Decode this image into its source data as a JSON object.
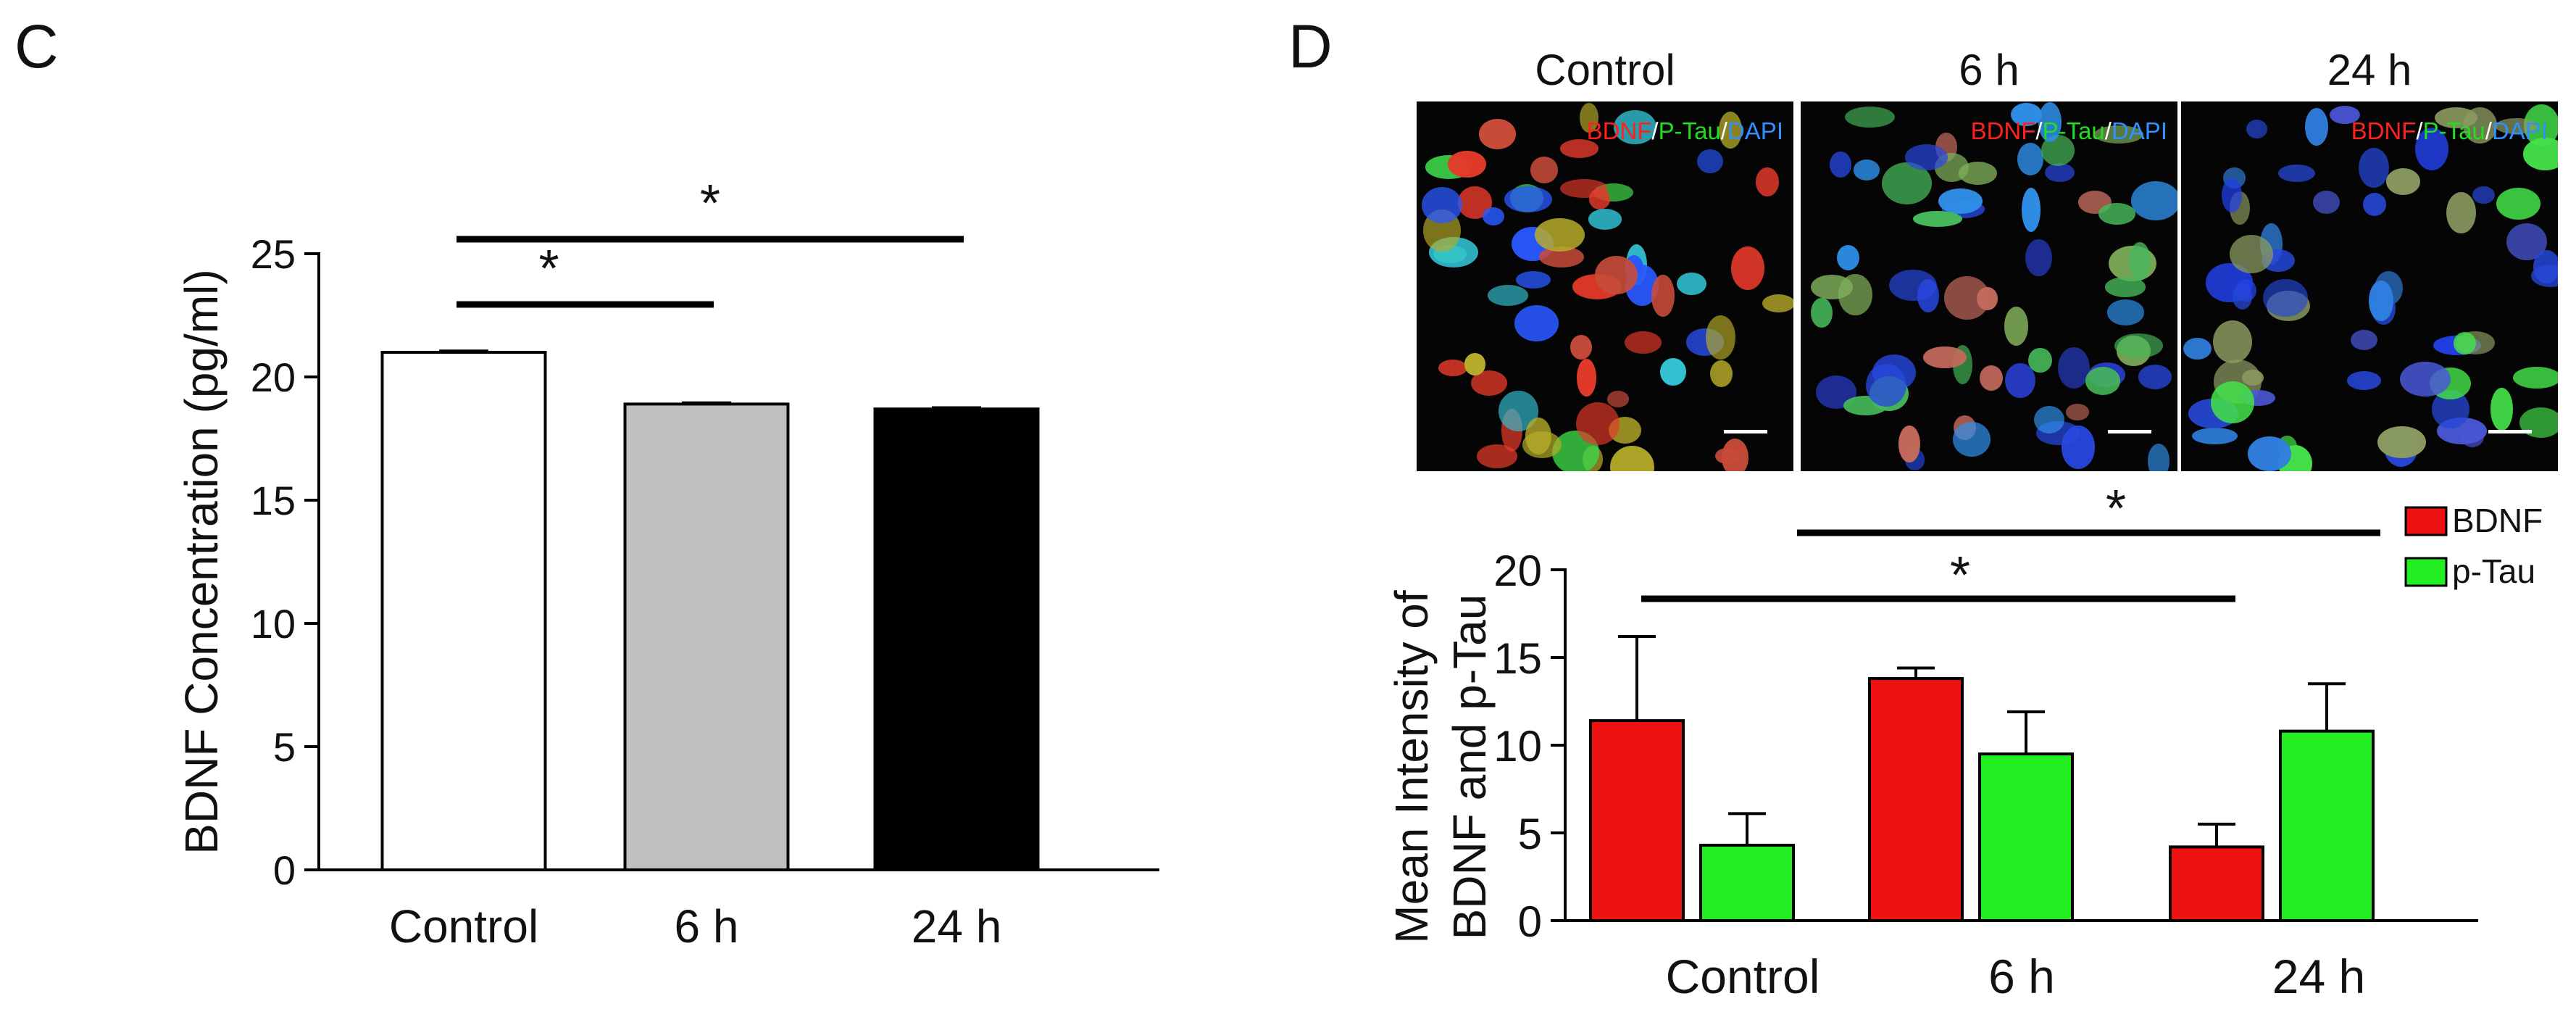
{
  "panel_c": {
    "letter": "C"
  },
  "panel_d": {
    "letter": "D",
    "micrograph_titles": [
      "Control",
      "6 h",
      "24 h"
    ],
    "stain_legend": {
      "part1": "BDNF",
      "sep1": "/",
      "part2": "P-Tau",
      "sep2": "/",
      "part3": "DAPI"
    }
  },
  "chart_data": [
    {
      "type": "bar",
      "categories": [
        "Control",
        "6 h",
        "24 h"
      ],
      "values": [
        21.0,
        18.9,
        18.7
      ],
      "errors": [
        0.05,
        0.05,
        0.05
      ],
      "bar_fill": [
        "#ffffff",
        "#bfbfbf",
        "#000000"
      ],
      "ylabel": "BDNF Concentration (pg/ml)",
      "xlabel": "",
      "ylim": [
        0,
        25
      ],
      "yticks": [
        0,
        5,
        10,
        15,
        20,
        25
      ],
      "significance": [
        {
          "from": "Control",
          "to": "6 h",
          "label": "*"
        },
        {
          "from": "Control",
          "to": "24 h",
          "label": "*"
        }
      ]
    },
    {
      "type": "bar",
      "categories": [
        "Control",
        "6 h",
        "24 h"
      ],
      "series": [
        {
          "name": "BDNF",
          "color": "#ee1111",
          "values": [
            11.4,
            13.8,
            4.2
          ],
          "errors": [
            4.8,
            0.6,
            1.3
          ]
        },
        {
          "name": "p-Tau",
          "color": "#22ee22",
          "values": [
            4.3,
            9.5,
            10.8
          ],
          "errors": [
            1.8,
            2.4,
            2.7
          ]
        }
      ],
      "ylabel_lines": [
        "Mean Intensity of",
        "BDNF and p-Tau"
      ],
      "xlabel": "",
      "ylim": [
        0,
        20
      ],
      "yticks": [
        0,
        5,
        10,
        15,
        20
      ],
      "legend": "top-right",
      "significance": [
        {
          "from": "Control",
          "to": "24 h",
          "series_ref": "BDNF",
          "label": "*"
        },
        {
          "from": "Control",
          "to": "24 h",
          "series_ref": "p-Tau",
          "label": "*"
        }
      ]
    }
  ]
}
